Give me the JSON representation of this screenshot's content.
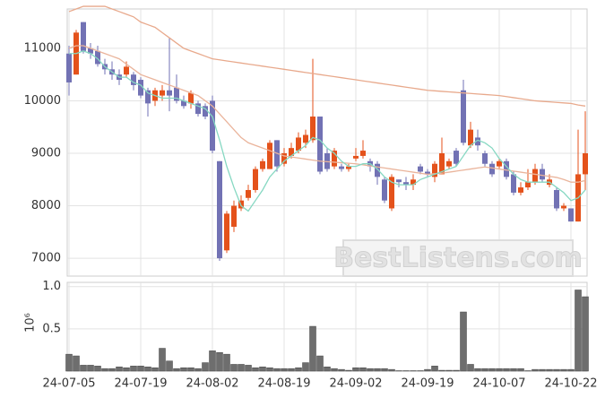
{
  "chart_data": [
    {
      "type": "candlestick",
      "categories": [
        "24-07-05",
        null,
        null,
        null,
        null,
        null,
        null,
        null,
        null,
        null,
        "24-07-19",
        null,
        null,
        null,
        null,
        null,
        null,
        null,
        null,
        null,
        "24-08-02",
        null,
        null,
        null,
        null,
        null,
        null,
        null,
        null,
        null,
        "24-08-19",
        null,
        null,
        null,
        null,
        null,
        null,
        null,
        null,
        null,
        "24-09-02",
        null,
        null,
        null,
        null,
        null,
        null,
        null,
        null,
        null,
        "24-09-19",
        null,
        null,
        null,
        null,
        null,
        null,
        null,
        null,
        null,
        "24-10-07",
        null,
        null,
        null,
        null,
        null,
        null,
        null,
        null,
        null,
        "24-10-22",
        null,
        null
      ],
      "open": [
        10900,
        10500,
        11500,
        11000,
        10950,
        10700,
        10600,
        10500,
        10500,
        10500,
        10400,
        10200,
        10000,
        10100,
        10200,
        10250,
        10000,
        9950,
        9950,
        9900,
        10000,
        8850,
        7150,
        7600,
        7950,
        8150,
        8300,
        8700,
        8700,
        9250,
        8800,
        8950,
        9050,
        9200,
        9250,
        9700,
        9000,
        8750,
        8750,
        8700,
        8900,
        8950,
        8850,
        8800,
        8500,
        7950,
        8500,
        8450,
        8400,
        8750,
        8650,
        8550,
        8600,
        8750,
        9050,
        10200,
        9150,
        9300,
        9000,
        8800,
        8750,
        8850,
        8600,
        8250,
        8350,
        8450,
        8700,
        8400,
        8300,
        7950,
        7950,
        7700,
        8600
      ],
      "high": [
        11050,
        11350,
        11500,
        11100,
        11050,
        10800,
        10750,
        10600,
        10750,
        10550,
        10450,
        10250,
        10250,
        10300,
        11200,
        10500,
        10100,
        10200,
        10000,
        9950,
        10100,
        8850,
        7900,
        8100,
        8200,
        8400,
        8750,
        8900,
        9250,
        9250,
        9100,
        9200,
        9400,
        9450,
        10800,
        9700,
        9100,
        9100,
        8800,
        8800,
        9100,
        9250,
        8900,
        8850,
        8550,
        8600,
        8500,
        8550,
        8600,
        8800,
        8700,
        8850,
        9300,
        8900,
        9100,
        10400,
        9600,
        9450,
        9050,
        8850,
        8900,
        8900,
        8650,
        8450,
        8700,
        8800,
        8800,
        8600,
        8350,
        8050,
        7950,
        9450,
        9800
      ],
      "low": [
        10100,
        10500,
        10900,
        10800,
        10650,
        10500,
        10400,
        10300,
        10450,
        10200,
        10050,
        9700,
        9900,
        10000,
        9800,
        9950,
        9850,
        9850,
        9700,
        9650,
        9000,
        6950,
        7100,
        7500,
        7900,
        8100,
        8250,
        8650,
        8700,
        8650,
        8750,
        8900,
        9000,
        9100,
        9200,
        8600,
        8650,
        8700,
        8650,
        8650,
        8850,
        8900,
        8650,
        8400,
        8050,
        7900,
        8350,
        8300,
        8300,
        8600,
        8550,
        8450,
        8600,
        8700,
        8750,
        9150,
        9100,
        9050,
        8750,
        8550,
        8700,
        8500,
        8200,
        8200,
        8300,
        8400,
        8450,
        8350,
        7900,
        7900,
        7700,
        7700,
        8300
      ],
      "close": [
        10350,
        11300,
        10950,
        10900,
        10700,
        10600,
        10500,
        10400,
        10650,
        10300,
        10100,
        9950,
        10200,
        10200,
        10100,
        10000,
        9900,
        10150,
        9750,
        9700,
        9050,
        7000,
        7850,
        8000,
        8100,
        8300,
        8700,
        8850,
        9200,
        8750,
        9000,
        9100,
        9300,
        9350,
        9700,
        8650,
        8700,
        9050,
        8700,
        8750,
        8950,
        9050,
        8750,
        8550,
        8100,
        8550,
        8450,
        8400,
        8500,
        8650,
        8600,
        8800,
        9000,
        8850,
        8800,
        9200,
        9450,
        9150,
        8800,
        8600,
        8850,
        8550,
        8250,
        8350,
        8450,
        8700,
        8500,
        8500,
        7950,
        8000,
        7700,
        8600,
        9000
      ],
      "up_color": "#e4521b",
      "down_color": "#7272b4",
      "series": [
        {
          "color": "#e8a98c",
          "values": [
            11700,
            11750,
            11800,
            11800,
            11800,
            11800,
            11750,
            11700,
            11650,
            11600,
            11500,
            11450,
            11400,
            11300,
            11200,
            11100,
            11000,
            10950,
            10900,
            10850,
            10800,
            10780,
            10760,
            10740,
            10720,
            10700,
            10680,
            10660,
            10640,
            10620,
            10600,
            10580,
            10560,
            10540,
            10520,
            10500,
            10480,
            10460,
            10440,
            10420,
            10400,
            10380,
            10360,
            10340,
            10320,
            10300,
            10280,
            10260,
            10240,
            10220,
            10200,
            10190,
            10180,
            10170,
            10160,
            10150,
            10140,
            10130,
            10120,
            10110,
            10100,
            10080,
            10060,
            10040,
            10020,
            10000,
            9990,
            9980,
            9970,
            9960,
            9950,
            9920,
            9900
          ]
        },
        {
          "color": "#eab49b",
          "values": [
            11000,
            11050,
            11050,
            11000,
            10950,
            10900,
            10850,
            10800,
            10700,
            10600,
            10500,
            10450,
            10400,
            10350,
            10300,
            10250,
            10200,
            10150,
            10100,
            10000,
            9900,
            9750,
            9600,
            9450,
            9300,
            9200,
            9150,
            9100,
            9050,
            9000,
            8950,
            8930,
            8910,
            8890,
            8870,
            8850,
            8840,
            8830,
            8820,
            8810,
            8800,
            8780,
            8760,
            8740,
            8720,
            8700,
            8680,
            8660,
            8640,
            8620,
            8600,
            8610,
            8620,
            8640,
            8660,
            8680,
            8700,
            8720,
            8740,
            8720,
            8700,
            8680,
            8660,
            8640,
            8620,
            8600,
            8580,
            8560,
            8540,
            8500,
            8450,
            8450,
            8480
          ]
        },
        {
          "color": "#86d8c2",
          "values": [
            10900,
            10900,
            10950,
            10900,
            10800,
            10650,
            10550,
            10450,
            10450,
            10350,
            10300,
            10150,
            10100,
            10050,
            10050,
            10050,
            10000,
            9950,
            9900,
            9850,
            9700,
            9250,
            8750,
            8350,
            8000,
            7900,
            8100,
            8300,
            8550,
            8700,
            8850,
            8950,
            9050,
            9150,
            9300,
            9250,
            9100,
            9000,
            8850,
            8750,
            8750,
            8800,
            8800,
            8700,
            8550,
            8450,
            8400,
            8400,
            8400,
            8500,
            8550,
            8600,
            8650,
            8700,
            8750,
            8950,
            9150,
            9250,
            9200,
            9100,
            8900,
            8750,
            8600,
            8500,
            8450,
            8450,
            8450,
            8450,
            8350,
            8250,
            8100,
            8150,
            8300
          ]
        }
      ],
      "ylim": [
        6660,
        11750
      ],
      "yticks": [
        7000,
        8000,
        9000,
        10000,
        11000
      ],
      "grid": true,
      "watermark": "BestListens.com"
    },
    {
      "type": "bar",
      "color": "#6e6e6e",
      "values": [
        0.2,
        0.18,
        0.07,
        0.07,
        0.06,
        0.03,
        0.03,
        0.05,
        0.04,
        0.06,
        0.06,
        0.05,
        0.04,
        0.27,
        0.12,
        0.03,
        0.04,
        0.04,
        0.03,
        0.1,
        0.24,
        0.22,
        0.2,
        0.08,
        0.08,
        0.07,
        0.04,
        0.05,
        0.04,
        0.03,
        0.03,
        0.03,
        0.04,
        0.1,
        0.53,
        0.18,
        0.05,
        0.03,
        0.02,
        0.01,
        0.04,
        0.04,
        0.03,
        0.03,
        0.03,
        0.02,
        0.005,
        0.005,
        0.005,
        0.005,
        0.02,
        0.06,
        0.01,
        0.01,
        0.01,
        0.7,
        0.08,
        0.03,
        0.03,
        0.03,
        0.03,
        0.03,
        0.03,
        0.03,
        0.005,
        0.02,
        0.02,
        0.02,
        0.02,
        0.02,
        0.02,
        0.96,
        0.88
      ],
      "ylim": [
        0,
        1.05
      ],
      "yticks": [
        0.5,
        {
          "value": 1,
          "label": "1.0"
        }
      ],
      "grid": true,
      "scale_label": "10⁶"
    }
  ]
}
